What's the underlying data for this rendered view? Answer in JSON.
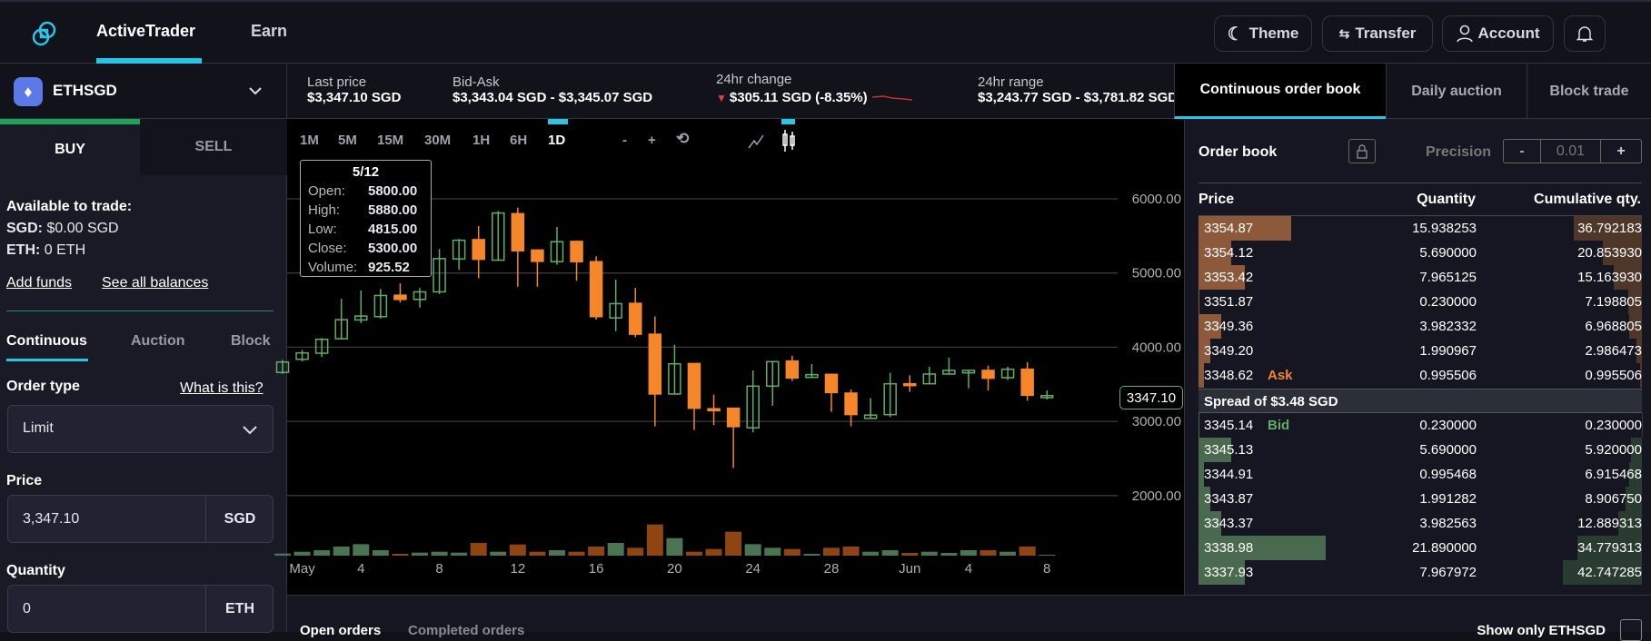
{
  "header": {
    "nav": [
      {
        "label": "ActiveTrader",
        "active": true
      },
      {
        "label": "Earn",
        "active": false
      }
    ],
    "buttons": {
      "theme": "Theme",
      "transfer": "Transfer",
      "account": "Account"
    },
    "icons": [
      "logo-icon",
      "moon-icon",
      "transfer-arrows-icon",
      "user-icon",
      "bell-icon"
    ],
    "accent": "#29c5e6"
  },
  "pair": {
    "symbol": "ETHSGD",
    "icon": "ethereum-icon"
  },
  "stats": {
    "last_price": {
      "label": "Last price",
      "value": "$3,347.10 SGD"
    },
    "bid_ask": {
      "label": "Bid-Ask",
      "value": "$3,343.04 SGD - $3,345.07 SGD"
    },
    "change": {
      "label": "24hr change",
      "value": "$305.11 SGD (-8.35%)",
      "direction": "down",
      "color": "#e04040"
    },
    "range": {
      "label": "24hr range",
      "value": "$3,243.77 SGD - $3,781.82 SGD"
    }
  },
  "book_tabs": [
    {
      "label": "Continuous order book",
      "active": true
    },
    {
      "label": "Daily auction",
      "active": false
    },
    {
      "label": "Block trade",
      "active": false
    }
  ],
  "trade": {
    "buy": "BUY",
    "sell": "SELL",
    "active_side": "BUY",
    "available_label": "Available to trade:",
    "sgd_label": "SGD:",
    "sgd_value": "$0.00 SGD",
    "eth_label": "ETH:",
    "eth_value": "0 ETH",
    "add_funds": "Add funds",
    "see_balances": "See all balances",
    "modes": [
      {
        "label": "Continuous",
        "active": true
      },
      {
        "label": "Auction",
        "active": false
      },
      {
        "label": "Block",
        "active": false
      }
    ],
    "order_type_label": "Order type",
    "what_is_this": "What is this?",
    "order_type_value": "Limit",
    "price_label": "Price",
    "price_value": "3,347.10",
    "price_unit": "SGD",
    "quantity_label": "Quantity",
    "quantity_value": "0",
    "quantity_unit": "ETH"
  },
  "chart_toolbar": {
    "timeframes": [
      "1M",
      "5M",
      "15M",
      "30M",
      "1H",
      "6H",
      "1D"
    ],
    "active_timeframe": "1D",
    "zoom_out": "-",
    "zoom_in": "+",
    "reset_icon": "reset-icon",
    "chart_types": [
      "line-chart-icon",
      "candlestick-icon"
    ],
    "active_chart_type": "candlestick-icon"
  },
  "tooltip": {
    "date": "5/12",
    "open_label": "Open:",
    "open": "5800.00",
    "high_label": "High:",
    "high": "5880.00",
    "low_label": "Low:",
    "low": "4815.00",
    "close_label": "Close:",
    "close": "5300.00",
    "volume_label": "Volume:",
    "volume": "925.52"
  },
  "chart_data": {
    "type": "candlestick",
    "y_ticks": [
      "6000.00",
      "5000.00",
      "4000.00",
      "3000.00",
      "2000.00"
    ],
    "ylim": [
      2000,
      6000
    ],
    "grid": true,
    "current_price_label": "3347.10",
    "x_ticks": [
      {
        "label": "May",
        "date": "5/1"
      },
      {
        "label": "4",
        "date": "5/4"
      },
      {
        "label": "8",
        "date": "5/8"
      },
      {
        "label": "12",
        "date": "5/12"
      },
      {
        "label": "16",
        "date": "5/16"
      },
      {
        "label": "20",
        "date": "5/20"
      },
      {
        "label": "24",
        "date": "5/24"
      },
      {
        "label": "28",
        "date": "5/28"
      },
      {
        "label": "Jun",
        "date": "6/1"
      },
      {
        "label": "4",
        "date": "6/4"
      },
      {
        "label": "8",
        "date": "6/8"
      }
    ],
    "colors": {
      "up": "#5fae66",
      "down": "#f5862a",
      "volume_up": "#4a7452",
      "volume_down": "#8f4512"
    },
    "candles": [
      {
        "date": "4/30",
        "open": 3660,
        "high": 3830,
        "low": 3640,
        "close": 3800,
        "volume": 175
      },
      {
        "date": "5/1",
        "open": 3837,
        "high": 3963,
        "low": 3808,
        "close": 3923,
        "volume": 325
      },
      {
        "date": "5/2",
        "open": 3919,
        "high": 4122,
        "low": 3870,
        "close": 4106,
        "volume": 450
      },
      {
        "date": "5/3",
        "open": 4114,
        "high": 4652,
        "low": 4106,
        "close": 4371,
        "volume": 750
      },
      {
        "date": "5/4",
        "open": 4367,
        "high": 4766,
        "low": 4326,
        "close": 4420,
        "volume": 950
      },
      {
        "date": "5/5",
        "open": 4412,
        "high": 4786,
        "low": 4387,
        "close": 4697,
        "volume": 450
      },
      {
        "date": "5/6",
        "open": 4701,
        "high": 4860,
        "low": 4603,
        "close": 4644,
        "volume": 150
      },
      {
        "date": "5/7",
        "open": 4644,
        "high": 4798,
        "low": 4534,
        "close": 4746,
        "volume": 250
      },
      {
        "date": "5/8",
        "open": 4746,
        "high": 5324,
        "low": 4717,
        "close": 5194,
        "volume": 325
      },
      {
        "date": "5/9",
        "open": 5190,
        "high": 5458,
        "low": 5043,
        "close": 5442,
        "volume": 250
      },
      {
        "date": "5/10",
        "open": 5450,
        "high": 5633,
        "low": 4929,
        "close": 5185,
        "volume": 1050
      },
      {
        "date": "5/11",
        "open": 5173,
        "high": 5837,
        "low": 5165,
        "close": 5809,
        "volume": 325
      },
      {
        "date": "5/12",
        "open": 5800,
        "high": 5880,
        "low": 4815,
        "close": 5300,
        "volume": 925.52
      },
      {
        "date": "5/13",
        "open": 5310,
        "high": 5310,
        "low": 4815,
        "close": 5157,
        "volume": 325
      },
      {
        "date": "5/14",
        "open": 5153,
        "high": 5621,
        "low": 5112,
        "close": 5422,
        "volume": 450
      },
      {
        "date": "5/15",
        "open": 5426,
        "high": 5438,
        "low": 4896,
        "close": 5153,
        "volume": 325
      },
      {
        "date": "5/16",
        "open": 5153,
        "high": 5226,
        "low": 4371,
        "close": 4412,
        "volume": 750
      },
      {
        "date": "5/17",
        "open": 4395,
        "high": 4912,
        "low": 4216,
        "close": 4587,
        "volume": 1050
      },
      {
        "date": "5/18",
        "open": 4591,
        "high": 4798,
        "low": 4134,
        "close": 4175,
        "volume": 650
      },
      {
        "date": "5/19",
        "open": 4175,
        "high": 4416,
        "low": 2933,
        "close": 3369,
        "volume": 2575
      },
      {
        "date": "5/20",
        "open": 3369,
        "high": 4033,
        "low": 3360,
        "close": 3776,
        "volume": 1450
      },
      {
        "date": "5/21",
        "open": 3780,
        "high": 3780,
        "low": 2884,
        "close": 3177,
        "volume": 325
      },
      {
        "date": "5/22",
        "open": 3170,
        "high": 3361,
        "low": 2949,
        "close": 3145,
        "volume": 550
      },
      {
        "date": "5/23",
        "open": 3177,
        "high": 3177,
        "low": 2371,
        "close": 2929,
        "volume": 1975
      },
      {
        "date": "5/24",
        "open": 2913,
        "high": 3686,
        "low": 2852,
        "close": 3475,
        "volume": 950
      },
      {
        "date": "5/25",
        "open": 3475,
        "high": 3805,
        "low": 3210,
        "close": 3805,
        "volume": 650
      },
      {
        "date": "5/26",
        "open": 3813,
        "high": 3886,
        "low": 3544,
        "close": 3585,
        "volume": 550
      },
      {
        "date": "5/27",
        "open": 3593,
        "high": 3772,
        "low": 3593,
        "close": 3630,
        "volume": 150
      },
      {
        "date": "5/28",
        "open": 3634,
        "high": 3634,
        "low": 3129,
        "close": 3389,
        "volume": 650
      },
      {
        "date": "5/29",
        "open": 3381,
        "high": 3430,
        "low": 2933,
        "close": 3092,
        "volume": 750
      },
      {
        "date": "5/30",
        "open": 3040,
        "high": 3312,
        "low": 3035,
        "close": 3085,
        "volume": 325
      },
      {
        "date": "5/31",
        "open": 3091,
        "high": 3654,
        "low": 3058,
        "close": 3507,
        "volume": 450
      },
      {
        "date": "6/1",
        "open": 3507,
        "high": 3621,
        "low": 3397,
        "close": 3490,
        "volume": 225
      },
      {
        "date": "6/2",
        "open": 3507,
        "high": 3736,
        "low": 3507,
        "close": 3638,
        "volume": 325
      },
      {
        "date": "6/3",
        "open": 3638,
        "high": 3858,
        "low": 3638,
        "close": 3687,
        "volume": 225
      },
      {
        "date": "6/4",
        "open": 3654,
        "high": 3687,
        "low": 3446,
        "close": 3687,
        "volume": 450
      },
      {
        "date": "6/5",
        "open": 3687,
        "high": 3752,
        "low": 3417,
        "close": 3581,
        "volume": 450
      },
      {
        "date": "6/6",
        "open": 3589,
        "high": 3736,
        "low": 3556,
        "close": 3703,
        "volume": 325
      },
      {
        "date": "6/7",
        "open": 3703,
        "high": 3797,
        "low": 3279,
        "close": 3352,
        "volume": 750
      },
      {
        "date": "6/8",
        "open": 3320,
        "high": 3417,
        "low": 3295,
        "close": 3347.1,
        "volume": 25
      }
    ]
  },
  "order_book": {
    "title": "Order book",
    "precision_label": "Precision",
    "precision_value": "0.01",
    "minus": "-",
    "plus": "+",
    "columns": [
      "Price",
      "Quantity",
      "Cumulative qty."
    ],
    "ask_label": "Ask",
    "bid_label": "Bid",
    "spread": "Spread of $3.48 SGD",
    "colors": {
      "ask": "#8c5a3b",
      "ask_cum": "#4e3628",
      "bid": "#4a6a4f",
      "bid_cum": "#2a3c2f",
      "ask_text": "#f5862a",
      "bid_text": "#5fae66"
    },
    "asks": [
      {
        "price": "3354.87",
        "qty": "15.938253",
        "cum": "36.792183"
      },
      {
        "price": "3354.12",
        "qty": "5.690000",
        "cum": "20.853930"
      },
      {
        "price": "3353.42",
        "qty": "7.965125",
        "cum": "15.163930"
      },
      {
        "price": "3351.87",
        "qty": "0.230000",
        "cum": "7.198805"
      },
      {
        "price": "3349.36",
        "qty": "3.982332",
        "cum": "6.968805"
      },
      {
        "price": "3349.20",
        "qty": "1.990967",
        "cum": "2.986473"
      },
      {
        "price": "3348.62",
        "qty": "0.995506",
        "cum": "0.995506"
      }
    ],
    "bids": [
      {
        "price": "3345.14",
        "qty": "0.230000",
        "cum": "0.230000"
      },
      {
        "price": "3345.13",
        "qty": "5.690000",
        "cum": "5.920000"
      },
      {
        "price": "3344.91",
        "qty": "0.995468",
        "cum": "6.915468"
      },
      {
        "price": "3343.87",
        "qty": "1.991282",
        "cum": "8.906750"
      },
      {
        "price": "3343.37",
        "qty": "3.982563",
        "cum": "12.889313"
      },
      {
        "price": "3338.98",
        "qty": "21.890000",
        "cum": "34.779313"
      },
      {
        "price": "3337.93",
        "qty": "7.967972",
        "cum": "42.747285"
      }
    ]
  },
  "orders": {
    "tabs": [
      {
        "label": "Open orders",
        "active": true
      },
      {
        "label": "Completed orders",
        "active": false
      }
    ],
    "filter_label": "Show only ETHSGD",
    "filter_checked": false
  }
}
